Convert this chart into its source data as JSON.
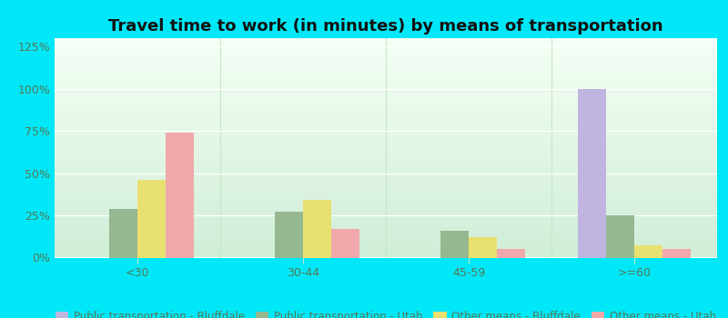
{
  "title": "Travel time to work (in minutes) by means of transportation",
  "categories": [
    "<30",
    "30-44",
    "45-59",
    ">=60"
  ],
  "series": {
    "Public transportation - Bluffdale": [
      0,
      0,
      0,
      100
    ],
    "Public transportation - Utah": [
      29,
      27,
      16,
      25
    ],
    "Other means - Bluffdale": [
      46,
      34,
      12,
      7
    ],
    "Other means - Utah": [
      74,
      17,
      5,
      5
    ]
  },
  "colors": {
    "Public transportation - Bluffdale": "#c0b4e0",
    "Public transportation - Utah": "#96b890",
    "Other means - Bluffdale": "#e8e070",
    "Other means - Utah": "#f0a8aa"
  },
  "ylim": [
    0,
    130
  ],
  "yticks": [
    0,
    25,
    50,
    75,
    100,
    125
  ],
  "ytick_labels": [
    "0%",
    "25%",
    "50%",
    "75%",
    "100%",
    "125%"
  ],
  "bg_top_color": "#f5fff5",
  "bg_bottom_color": "#d0eed8",
  "outer_background": "#00e8f8",
  "title_fontsize": 13,
  "bar_width": 0.17,
  "tick_label_color": "#557755",
  "tick_fontsize": 9,
  "legend_fontsize": 8.5,
  "grid_color": "#ffffff",
  "separator_color": "#c8e8c8"
}
